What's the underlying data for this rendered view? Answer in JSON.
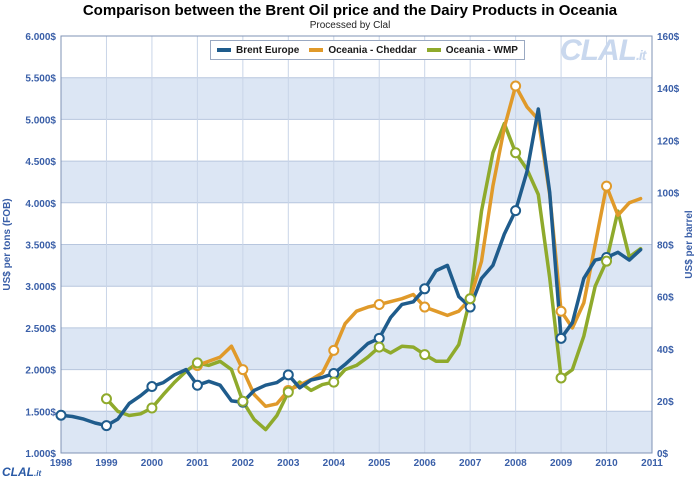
{
  "colors": {
    "band_dark": "#dce6f4",
    "band_light": "#ffffff",
    "axis_text": "#3a5fa8",
    "brent": "#1f5c8c",
    "cheddar": "#e09a2a",
    "wmp": "#8faa2c"
  },
  "logo": {
    "main": "CLAL",
    "main_suffix": ".it",
    "footer": "CLAL",
    "footer_suffix": ".it"
  },
  "chart_data": {
    "type": "line",
    "title": "Comparison between the Brent Oil price and the Dairy Products in Oceania",
    "subtitle": "Processed by Clal",
    "ylabel_left": "US$ per tons (FOB)",
    "ylabel_right": "US$ per barrel",
    "x_range": [
      1998,
      2011
    ],
    "y_left_range": [
      1000,
      6000
    ],
    "y_right_range": [
      0,
      160
    ],
    "x_ticks": [
      "1998",
      "1999",
      "2000",
      "2001",
      "2002",
      "2003",
      "2004",
      "2005",
      "2006",
      "2007",
      "2008",
      "2009",
      "2010",
      "2011"
    ],
    "y_left_ticks": [
      "1.000$",
      "1.500$",
      "2.000$",
      "2.500$",
      "3.000$",
      "3.500$",
      "4.000$",
      "4.500$",
      "5.000$",
      "5.500$",
      "6.000$"
    ],
    "y_right_ticks": [
      "0$",
      "20$",
      "40$",
      "60$",
      "80$",
      "100$",
      "120$",
      "140$",
      "160$"
    ],
    "legend": [
      "Brent Europe",
      "Oceania - Cheddar",
      "Oceania - WMP"
    ],
    "series": [
      {
        "name": "Brent Europe",
        "axis": "right",
        "color": "#1f5c8c",
        "points": [
          [
            1998.0,
            14.5
          ],
          [
            1998.25,
            14
          ],
          [
            1998.5,
            13
          ],
          [
            1998.75,
            11.5
          ],
          [
            1999.0,
            10.5
          ],
          [
            1999.25,
            13
          ],
          [
            1999.5,
            19
          ],
          [
            1999.75,
            22
          ],
          [
            2000.0,
            25.5
          ],
          [
            2000.25,
            27
          ],
          [
            2000.5,
            30
          ],
          [
            2000.75,
            32
          ],
          [
            2001.0,
            26
          ],
          [
            2001.25,
            27.5
          ],
          [
            2001.5,
            26
          ],
          [
            2001.75,
            20
          ],
          [
            2002.0,
            19.5
          ],
          [
            2002.25,
            24
          ],
          [
            2002.5,
            26
          ],
          [
            2002.75,
            27
          ],
          [
            2003.0,
            30
          ],
          [
            2003.25,
            25
          ],
          [
            2003.5,
            28
          ],
          [
            2003.75,
            29
          ],
          [
            2004.0,
            30.5
          ],
          [
            2004.25,
            34
          ],
          [
            2004.5,
            38
          ],
          [
            2004.75,
            42
          ],
          [
            2005.0,
            44
          ],
          [
            2005.25,
            52
          ],
          [
            2005.5,
            57
          ],
          [
            2005.75,
            58
          ],
          [
            2006.0,
            63
          ],
          [
            2006.25,
            70
          ],
          [
            2006.5,
            72
          ],
          [
            2006.75,
            60
          ],
          [
            2007.0,
            56
          ],
          [
            2007.25,
            67
          ],
          [
            2007.5,
            72
          ],
          [
            2007.75,
            84
          ],
          [
            2008.0,
            93
          ],
          [
            2008.25,
            108
          ],
          [
            2008.5,
            132
          ],
          [
            2008.75,
            100
          ],
          [
            2009.0,
            44
          ],
          [
            2009.25,
            50
          ],
          [
            2009.5,
            67
          ],
          [
            2009.75,
            74
          ],
          [
            2010.0,
            75
          ],
          [
            2010.25,
            77
          ],
          [
            2010.5,
            74
          ],
          [
            2010.75,
            78
          ]
        ]
      },
      {
        "name": "Oceania - Cheddar",
        "axis": "left",
        "color": "#e09a2a",
        "points": [
          [
            2001.0,
            2050
          ],
          [
            2001.5,
            2150
          ],
          [
            2001.75,
            2280
          ],
          [
            2002.0,
            2000
          ],
          [
            2002.25,
            1700
          ],
          [
            2002.5,
            1560
          ],
          [
            2002.75,
            1590
          ],
          [
            2003.0,
            1750
          ],
          [
            2003.5,
            1880
          ],
          [
            2003.75,
            1960
          ],
          [
            2004.0,
            2230
          ],
          [
            2004.25,
            2550
          ],
          [
            2004.5,
            2700
          ],
          [
            2004.75,
            2750
          ],
          [
            2005.0,
            2780
          ],
          [
            2005.5,
            2850
          ],
          [
            2005.75,
            2900
          ],
          [
            2006.0,
            2750
          ],
          [
            2006.25,
            2700
          ],
          [
            2006.5,
            2650
          ],
          [
            2006.75,
            2700
          ],
          [
            2007.0,
            2850
          ],
          [
            2007.25,
            3300
          ],
          [
            2007.5,
            4200
          ],
          [
            2007.75,
            4900
          ],
          [
            2008.0,
            5400
          ],
          [
            2008.25,
            5150
          ],
          [
            2008.5,
            5000
          ],
          [
            2008.75,
            4100
          ],
          [
            2009.0,
            2700
          ],
          [
            2009.25,
            2500
          ],
          [
            2009.5,
            2800
          ],
          [
            2009.75,
            3500
          ],
          [
            2010.0,
            4200
          ],
          [
            2010.25,
            3850
          ],
          [
            2010.5,
            4000
          ],
          [
            2010.75,
            4050
          ]
        ]
      },
      {
        "name": "Oceania - WMP",
        "axis": "left",
        "color": "#8faa2c",
        "points": [
          [
            1999.0,
            1650
          ],
          [
            1999.25,
            1500
          ],
          [
            1999.5,
            1450
          ],
          [
            1999.75,
            1470
          ],
          [
            2000.0,
            1540
          ],
          [
            2000.25,
            1700
          ],
          [
            2000.5,
            1850
          ],
          [
            2000.75,
            1980
          ],
          [
            2001.0,
            2080
          ],
          [
            2001.25,
            2050
          ],
          [
            2001.5,
            2100
          ],
          [
            2001.75,
            2000
          ],
          [
            2002.0,
            1620
          ],
          [
            2002.25,
            1400
          ],
          [
            2002.5,
            1280
          ],
          [
            2002.75,
            1450
          ],
          [
            2003.0,
            1730
          ],
          [
            2003.25,
            1850
          ],
          [
            2003.5,
            1750
          ],
          [
            2003.75,
            1820
          ],
          [
            2004.0,
            1850
          ],
          [
            2004.25,
            2000
          ],
          [
            2004.5,
            2050
          ],
          [
            2004.75,
            2150
          ],
          [
            2005.0,
            2270
          ],
          [
            2005.25,
            2200
          ],
          [
            2005.5,
            2280
          ],
          [
            2005.75,
            2270
          ],
          [
            2006.0,
            2180
          ],
          [
            2006.25,
            2100
          ],
          [
            2006.5,
            2100
          ],
          [
            2006.75,
            2300
          ],
          [
            2007.0,
            2850
          ],
          [
            2007.25,
            3900
          ],
          [
            2007.5,
            4600
          ],
          [
            2007.75,
            4950
          ],
          [
            2008.0,
            4600
          ],
          [
            2008.25,
            4400
          ],
          [
            2008.5,
            4100
          ],
          [
            2008.75,
            3100
          ],
          [
            2009.0,
            1900
          ],
          [
            2009.25,
            2000
          ],
          [
            2009.5,
            2400
          ],
          [
            2009.75,
            3000
          ],
          [
            2010.0,
            3300
          ],
          [
            2010.25,
            3900
          ],
          [
            2010.5,
            3350
          ],
          [
            2010.75,
            3450
          ]
        ]
      }
    ],
    "markers": [
      {
        "series": "Brent Europe",
        "axis": "right",
        "points": [
          [
            1998.0,
            14.5
          ],
          [
            1999.0,
            10.5
          ],
          [
            2000.0,
            25.5
          ],
          [
            2001.0,
            26
          ],
          [
            2002.0,
            19.5
          ],
          [
            2003.0,
            30
          ],
          [
            2004.0,
            30.5
          ],
          [
            2005.0,
            44
          ],
          [
            2006.0,
            63
          ],
          [
            2007.0,
            56
          ],
          [
            2008.0,
            93
          ],
          [
            2009.0,
            44
          ],
          [
            2010.0,
            75
          ]
        ]
      },
      {
        "series": "Oceania - Cheddar",
        "axis": "left",
        "points": [
          [
            2001.0,
            2050
          ],
          [
            2002.0,
            2000
          ],
          [
            2003.0,
            1750
          ],
          [
            2004.0,
            2230
          ],
          [
            2005.0,
            2780
          ],
          [
            2006.0,
            2750
          ],
          [
            2007.0,
            2850
          ],
          [
            2008.0,
            5400
          ],
          [
            2009.0,
            2700
          ],
          [
            2010.0,
            4200
          ]
        ]
      },
      {
        "series": "Oceania - WMP",
        "axis": "left",
        "points": [
          [
            1999.0,
            1650
          ],
          [
            2000.0,
            1540
          ],
          [
            2001.0,
            2080
          ],
          [
            2002.0,
            1620
          ],
          [
            2003.0,
            1730
          ],
          [
            2004.0,
            1850
          ],
          [
            2005.0,
            2270
          ],
          [
            2006.0,
            2180
          ],
          [
            2007.0,
            2850
          ],
          [
            2008.0,
            4600
          ],
          [
            2009.0,
            1900
          ],
          [
            2010.0,
            3300
          ]
        ]
      }
    ]
  }
}
